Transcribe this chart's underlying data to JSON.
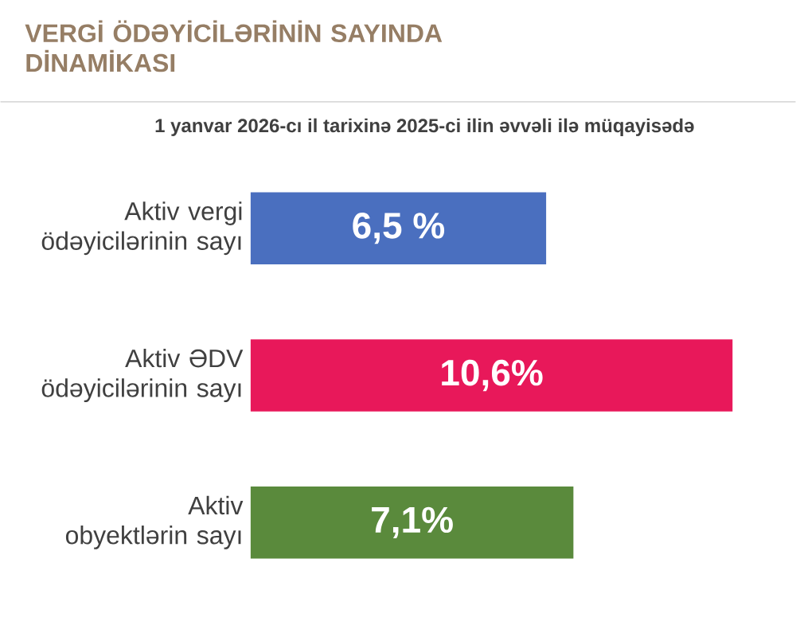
{
  "chart_data": {
    "type": "bar",
    "orientation": "horizontal",
    "title": "VERGİ ÖDƏYİCİLƏRİNİN SAYINDA DİNAMİKASI",
    "subtitle": "1 yanvar 2026-cı il tarixinə 2025-ci ilin əvvəli ilə müqayisədə",
    "categories": [
      "Aktiv vergi ödəyicilərinin sayı",
      "Aktiv ƏDV ödəyicilərinin sayı",
      "Aktiv obyektlərin sayı"
    ],
    "values": [
      6.5,
      10.6,
      7.1
    ],
    "colors": [
      "#4a6fbf",
      "#e8185a",
      "#5a8a3c"
    ],
    "value_labels": [
      "6,5 %",
      "10,6%",
      "7,1%"
    ]
  }
}
